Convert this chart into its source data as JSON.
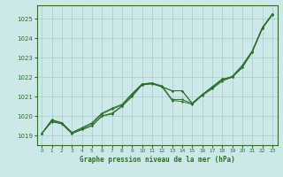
{
  "title": "Graphe pression niveau de la mer (hPa)",
  "bg_color": "#cce8e8",
  "line_color": "#2d6e2d",
  "grid_color": "#aacccc",
  "xlim": [
    -0.5,
    23.5
  ],
  "ylim": [
    1018.5,
    1025.7
  ],
  "yticks": [
    1019,
    1020,
    1021,
    1022,
    1023,
    1024,
    1025
  ],
  "xticks": [
    0,
    1,
    2,
    3,
    4,
    5,
    6,
    7,
    8,
    9,
    10,
    11,
    12,
    13,
    14,
    15,
    16,
    17,
    18,
    19,
    20,
    21,
    22,
    23
  ],
  "lines": [
    [
      1019.1,
      1019.7,
      1019.6,
      1019.1,
      1019.3,
      1019.5,
      1020.0,
      1020.15,
      1020.5,
      1021.05,
      1021.6,
      1021.7,
      1021.5,
      1021.3,
      1021.3,
      1020.65,
      1021.1,
      1021.5,
      1021.9,
      1022.0,
      1022.5,
      1023.3,
      1024.5,
      1025.25
    ],
    [
      1019.1,
      1019.75,
      1019.6,
      1019.1,
      1019.3,
      1019.5,
      1020.0,
      1020.1,
      1020.5,
      1021.0,
      1021.6,
      1021.65,
      1021.5,
      1021.3,
      1021.3,
      1020.65,
      1021.1,
      1021.5,
      1021.9,
      1022.0,
      1022.5,
      1023.3,
      1024.5,
      1025.2
    ],
    [
      1019.1,
      1019.8,
      1019.65,
      1019.15,
      1019.35,
      1019.6,
      1020.1,
      1020.35,
      1020.55,
      1021.1,
      1021.65,
      1021.7,
      1021.5,
      1020.8,
      1020.75,
      1020.6,
      1021.05,
      1021.4,
      1021.8,
      1022.0,
      1022.6,
      1023.35,
      1024.55,
      1025.25
    ],
    [
      1019.1,
      1019.8,
      1019.65,
      1019.15,
      1019.4,
      1019.65,
      1020.15,
      1020.4,
      1020.6,
      1021.15,
      1021.65,
      1021.7,
      1021.55,
      1020.85,
      1020.85,
      1020.65,
      1021.1,
      1021.45,
      1021.85,
      1022.05,
      1022.6,
      1023.35,
      1024.55,
      1025.25
    ]
  ]
}
